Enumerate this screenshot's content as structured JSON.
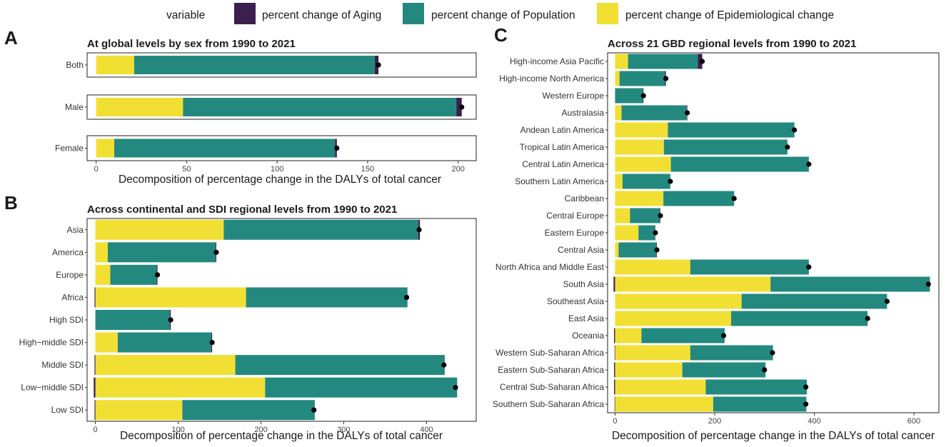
{
  "legend": {
    "title": "variable",
    "items": [
      {
        "name": "percent change of Aging",
        "color": "#3b1f4e"
      },
      {
        "name": "percent change of Population",
        "color": "#23897f"
      },
      {
        "name": "percent change of Epidemiological change",
        "color": "#f2df33"
      }
    ]
  },
  "chart_data": [
    {
      "panel": "A",
      "type": "bar",
      "orientation": "horizontal",
      "stacked": true,
      "title": "At global levels by sex from 1990 to 2021",
      "xlabel": "Decomposition of percentage change in the DALYs of total cancer",
      "xlim": [
        -5,
        210
      ],
      "xticks": [
        0,
        50,
        100,
        150,
        200
      ],
      "categories": [
        "Both",
        "Male",
        "Female"
      ],
      "series": [
        {
          "name": "percent change of Epidemiological change",
          "values": [
            21,
            48,
            10
          ]
        },
        {
          "name": "percent change of Population",
          "values": [
            133,
            151,
            122
          ]
        },
        {
          "name": "percent change of Aging",
          "values": [
            2,
            3,
            1
          ]
        }
      ],
      "totals": [
        156,
        202,
        133
      ]
    },
    {
      "panel": "B",
      "type": "bar",
      "orientation": "horizontal",
      "stacked": true,
      "title": "Across continental and SDI regional levels from 1990 to 2021",
      "xlabel": "Decomposition of percentage change in the DALYs of total cancer",
      "xlim": [
        -10,
        460
      ],
      "xticks": [
        0,
        100,
        200,
        300,
        400
      ],
      "categories": [
        "Asia",
        "America",
        "Europe",
        "Africa",
        "High SDI",
        "High−middle SDI",
        "Middle SDI",
        "Low−middle SDI",
        "Low SDI"
      ],
      "series": [
        {
          "name": "percent change of Epidemiological change",
          "values": [
            155,
            15,
            18,
            182,
            0,
            27,
            169,
            205,
            105
          ]
        },
        {
          "name": "percent change of Population",
          "values": [
            235,
            130,
            56,
            195,
            90,
            113,
            253,
            232,
            160
          ]
        },
        {
          "name": "percent change of Aging",
          "values": [
            2,
            1,
            1,
            -1,
            1,
            1,
            -1,
            -2,
            -1
          ]
        }
      ],
      "totals": [
        391,
        146,
        75,
        376,
        91,
        141,
        421,
        435,
        264
      ]
    },
    {
      "panel": "C",
      "type": "bar",
      "orientation": "horizontal",
      "stacked": true,
      "title": "Across 21 GBD regional levels from 1990 to 2021",
      "xlabel": "Decomposition of percentage change in the DALYs of total cancer",
      "xlim": [
        -15,
        650
      ],
      "xticks": [
        0,
        200,
        400,
        600
      ],
      "categories": [
        "High-income Asia Pacific",
        "High-income North America",
        "Western Europe",
        "Australasia",
        "Andean Latin America",
        "Tropical Latin America",
        "Central Latin America",
        "Southern Latin America",
        "Caribbean",
        "Central Europe",
        "Eastern Europe",
        "Central Asia",
        "North Africa and Middle East",
        "South Asia",
        "Southeast Asia",
        "East Asia",
        "Oceania",
        "Western Sub-Saharan Africa",
        "Eastern Sub-Saharan Africa",
        "Central Sub-Saharan Africa",
        "Southern Sub-Saharan Africa"
      ],
      "series": [
        {
          "name": "percent change of Epidemiological change",
          "values": [
            26,
            9,
            0,
            13,
            106,
            98,
            112,
            15,
            97,
            30,
            47,
            7,
            151,
            312,
            254,
            233,
            53,
            151,
            135,
            182,
            197
          ]
        },
        {
          "name": "percent change of Population",
          "values": [
            140,
            91,
            56,
            131,
            254,
            248,
            277,
            96,
            142,
            60,
            34,
            76,
            238,
            320,
            292,
            274,
            167,
            166,
            167,
            203,
            187
          ]
        },
        {
          "name": "percent change of Aging",
          "values": [
            9,
            2,
            1,
            1,
            0,
            0,
            0,
            0,
            0,
            1,
            0,
            1,
            0,
            -3,
            0,
            0,
            -2,
            -1,
            -2,
            -2,
            -1
          ]
        }
      ],
      "totals": [
        175,
        102,
        57,
        145,
        360,
        346,
        389,
        111,
        239,
        91,
        81,
        84,
        389,
        629,
        546,
        507,
        218,
        316,
        300,
        383,
        383
      ]
    }
  ]
}
